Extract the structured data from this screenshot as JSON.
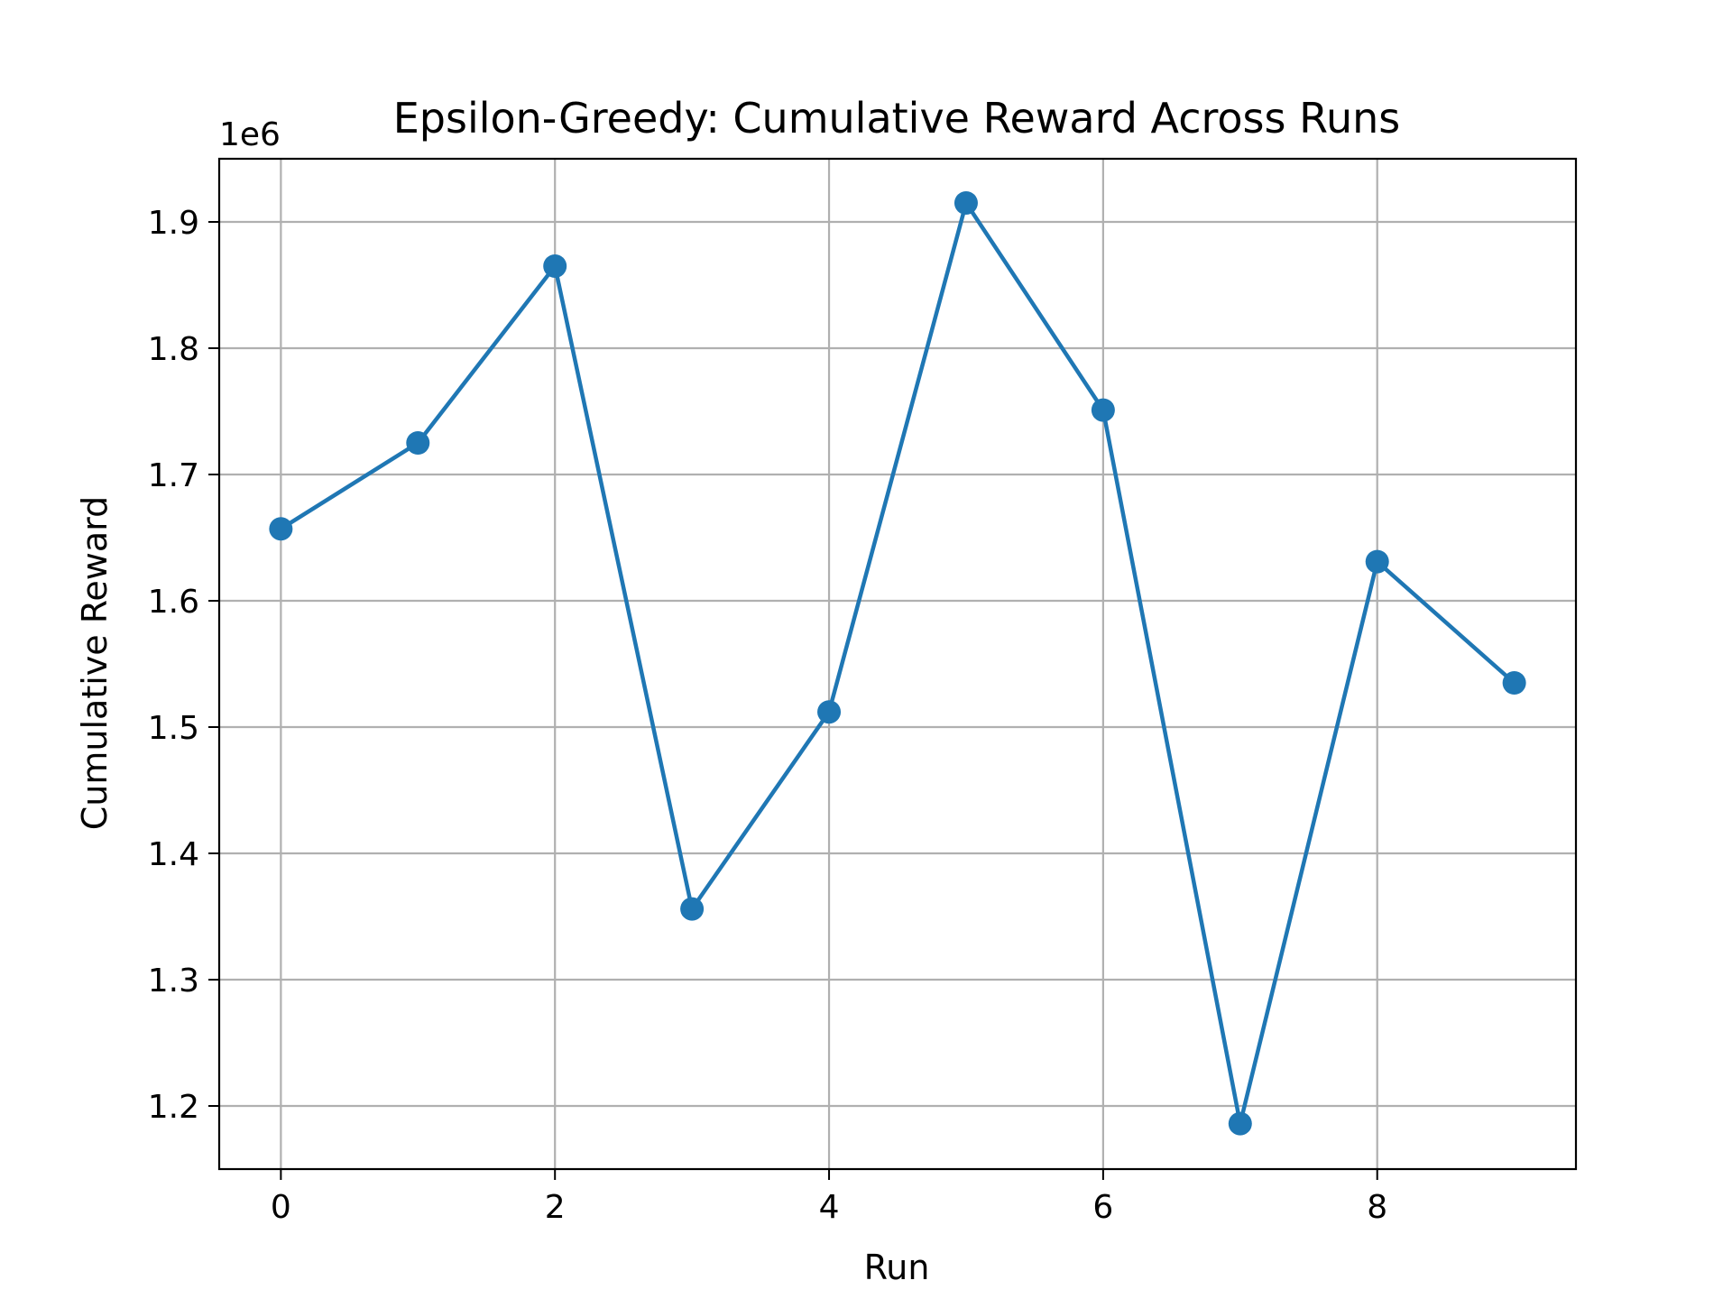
{
  "chart_data": {
    "type": "line",
    "title": "Epsilon-Greedy: Cumulative Reward Across Runs",
    "xlabel": "Run",
    "ylabel": "Cumulative Reward",
    "y_offset_label": "1e6",
    "xlim": [
      -0.45,
      9.45
    ],
    "ylim": [
      1.15,
      1.95
    ],
    "x_ticks": [
      0,
      2,
      4,
      6,
      8
    ],
    "x_tick_labels": [
      "0",
      "2",
      "4",
      "6",
      "8"
    ],
    "y_ticks": [
      1.2,
      1.3,
      1.4,
      1.5,
      1.6,
      1.7,
      1.8,
      1.9
    ],
    "y_tick_labels": [
      "1.2",
      "1.3",
      "1.4",
      "1.5",
      "1.6",
      "1.7",
      "1.8",
      "1.9"
    ],
    "grid": true,
    "color": "#1f77b4",
    "marker": "circle",
    "x": [
      0,
      1,
      2,
      3,
      4,
      5,
      6,
      7,
      8,
      9
    ],
    "values": [
      1.657,
      1.725,
      1.865,
      1.356,
      1.512,
      1.915,
      1.751,
      1.186,
      1.631,
      1.535
    ]
  }
}
